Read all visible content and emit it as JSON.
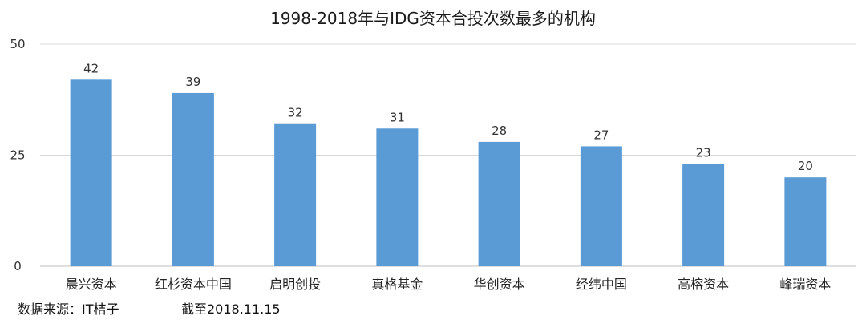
{
  "chart_data": {
    "type": "bar",
    "title": "1998-2018年与IDG资本合投次数最多的机构",
    "categories": [
      "晨兴资本",
      "红杉资本中国",
      "启明创投",
      "真格基金",
      "华创资本",
      "经纬中国",
      "高榕资本",
      "峰瑞资本"
    ],
    "series": [
      {
        "values": [
          42,
          39,
          32,
          31,
          28,
          27,
          23,
          20
        ]
      }
    ],
    "data_labels": [
      "42",
      "39",
      "32",
      "31",
      "28",
      "27",
      "23",
      "20"
    ],
    "ylim": [
      0,
      50
    ],
    "yticks": [
      0,
      25,
      50
    ],
    "ytick_labels": [
      "0",
      "25",
      "50"
    ],
    "xlabel": "",
    "ylabel": "",
    "grid": true,
    "legend": "none",
    "colors": {
      "bar": "#5B9BD5",
      "grid": "#D9D9D9",
      "axis": "#BFBFBF"
    }
  },
  "footer": {
    "source": "数据来源：IT桔子",
    "date": "截至2018.11.15"
  }
}
